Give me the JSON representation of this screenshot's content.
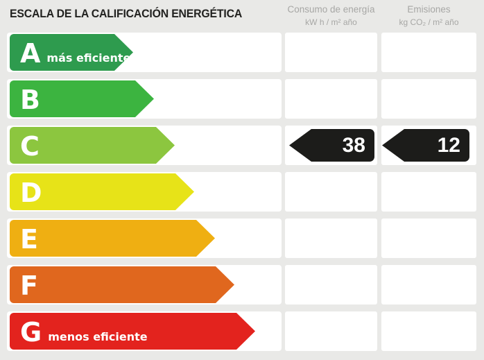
{
  "title": "ESCALA DE LA CALIFICACIÓN ENERGÉTICA",
  "columns": {
    "consumo": {
      "title": "Consumo de energía",
      "unit": "kW h / m² año"
    },
    "emisiones": {
      "title": "Emisiones",
      "unit": "kg CO₂ / m² año"
    }
  },
  "scale": {
    "selected_grade": "C",
    "rows": [
      {
        "grade": "A",
        "note": "más eficiente",
        "color": "#2e9b4e"
      },
      {
        "grade": "B",
        "color": "#3cb440"
      },
      {
        "grade": "C",
        "color": "#8cc63f",
        "consumo": "38",
        "emisiones": "12"
      },
      {
        "grade": "D",
        "color": "#e7e318"
      },
      {
        "grade": "E",
        "color": "#efaf12"
      },
      {
        "grade": "F",
        "color": "#e0671e"
      },
      {
        "grade": "G",
        "note": "menos eficiente",
        "color": "#e3231e"
      }
    ],
    "value_arrow_color": "#1c1c1a"
  },
  "chart_data": {
    "type": "bar",
    "title": "ESCALA DE LA CALIFICACIÓN ENERGÉTICA",
    "categories": [
      "A",
      "B",
      "C",
      "D",
      "E",
      "F",
      "G"
    ],
    "category_colors": [
      "#2e9b4e",
      "#3cb440",
      "#8cc63f",
      "#e7e318",
      "#efaf12",
      "#e0671e",
      "#e3231e"
    ],
    "category_annotations": {
      "A": "más eficiente",
      "G": "menos eficiente"
    },
    "bar_relative_lengths": [
      178,
      208,
      238,
      266,
      296,
      324,
      354
    ],
    "selected_rating": "C",
    "series": [
      {
        "name": "Consumo de energía (kW h / m² año)",
        "rating": "C",
        "value": 38
      },
      {
        "name": "Emisiones (kg CO₂ / m² año)",
        "rating": "C",
        "value": 12
      }
    ],
    "orientation": "horizontal",
    "legend": "none"
  }
}
